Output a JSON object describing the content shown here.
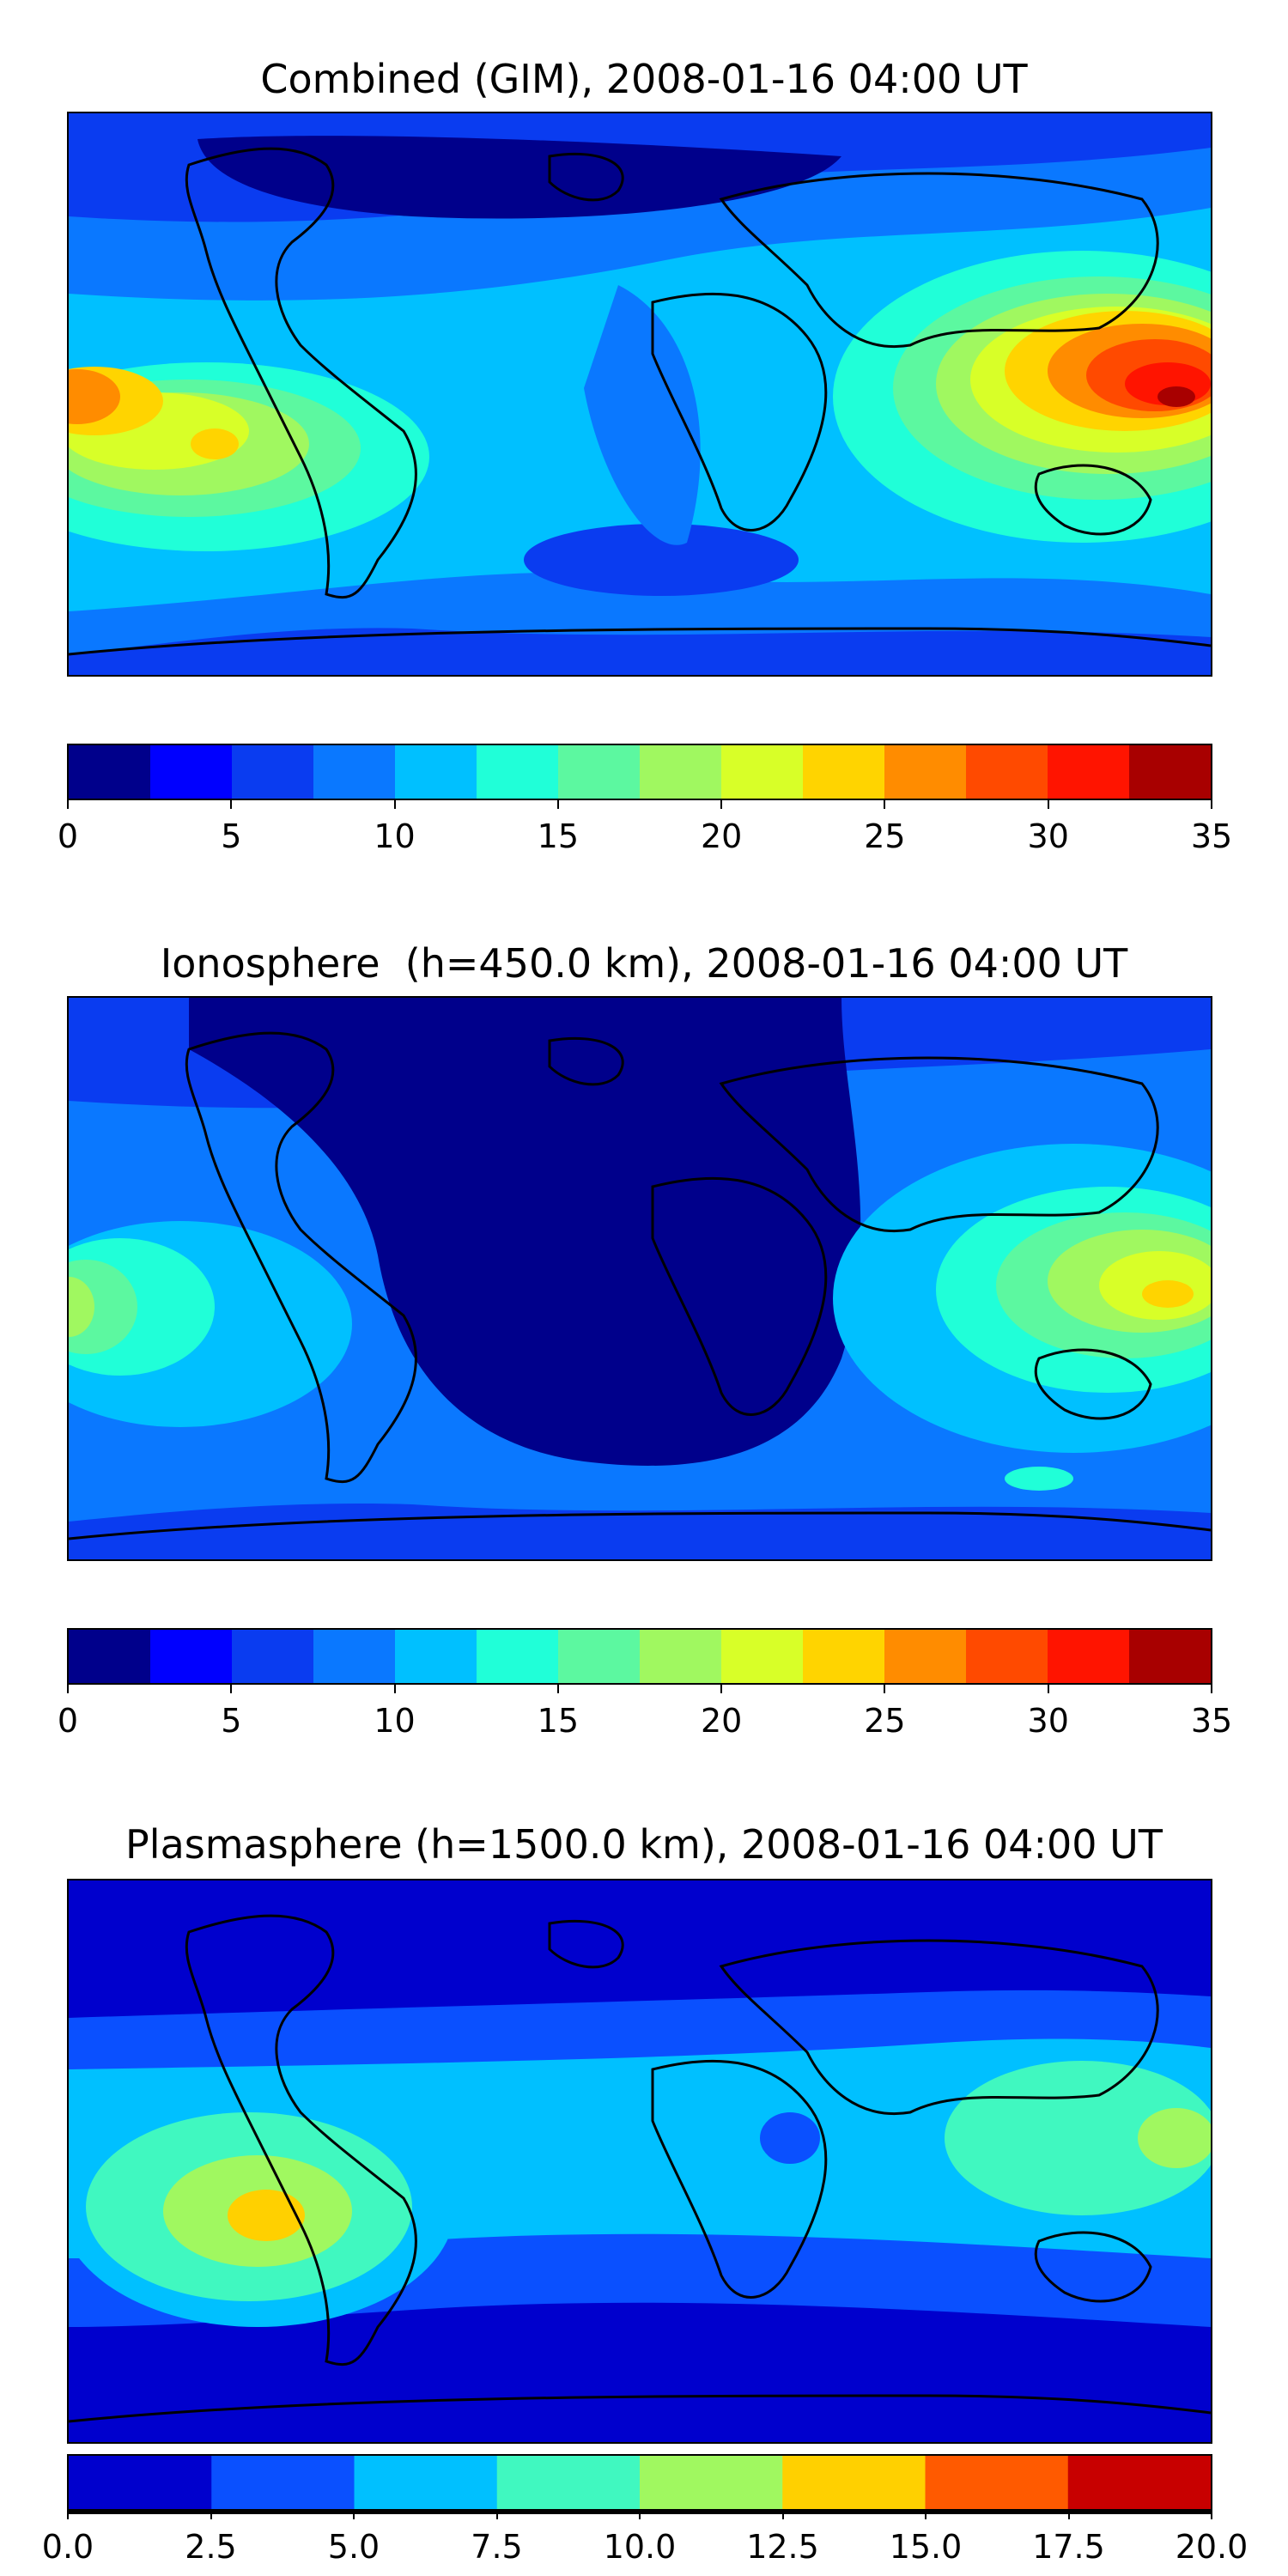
{
  "panels": [
    {
      "title": "Combined (GIM), 2008-01-16 04:00 UT",
      "colorbar": {
        "min": 0,
        "max": 35,
        "colors": [
          "#00008b",
          "#0000ff",
          "#0a3cf0",
          "#0a78ff",
          "#00c0ff",
          "#20ffd8",
          "#5cf8a0",
          "#a0f860",
          "#d8ff28",
          "#ffd400",
          "#ff8c00",
          "#ff4a00",
          "#ff1400",
          "#a80000"
        ],
        "tick_labels": [
          "0",
          "5",
          "10",
          "15",
          "20",
          "25",
          "30",
          "35"
        ],
        "tick_values": [
          0,
          5,
          10,
          15,
          20,
          25,
          30,
          35
        ]
      },
      "background_level": 10
    },
    {
      "title": "Ionosphere  (h=450.0 km), 2008-01-16 04:00 UT",
      "colorbar": {
        "min": 0,
        "max": 35,
        "colors": [
          "#00008b",
          "#0000ff",
          "#0a3cf0",
          "#0a78ff",
          "#00c0ff",
          "#20ffd8",
          "#5cf8a0",
          "#a0f860",
          "#d8ff28",
          "#ffd400",
          "#ff8c00",
          "#ff4a00",
          "#ff1400",
          "#a80000"
        ],
        "tick_labels": [
          "0",
          "5",
          "10",
          "15",
          "20",
          "25",
          "30",
          "35"
        ],
        "tick_values": [
          0,
          5,
          10,
          15,
          20,
          25,
          30,
          35
        ]
      },
      "background_level": 7.5
    },
    {
      "title": "Plasmasphere (h=1500.0 km), 2008-01-16 04:00 UT",
      "colorbar": {
        "min": 0,
        "max": 20,
        "colors": [
          "#0000cd",
          "#0a50ff",
          "#00c0ff",
          "#40f8c0",
          "#a0f860",
          "#ffd000",
          "#ff5a00",
          "#c80000"
        ],
        "tick_labels": [
          "0.0",
          "2.5",
          "5.0",
          "7.5",
          "10.0",
          "12.5",
          "15.0",
          "17.5",
          "20.0"
        ],
        "tick_values": [
          0,
          2.5,
          5,
          7.5,
          10,
          12.5,
          15,
          17.5,
          20
        ]
      },
      "background_level": 5
    }
  ]
}
